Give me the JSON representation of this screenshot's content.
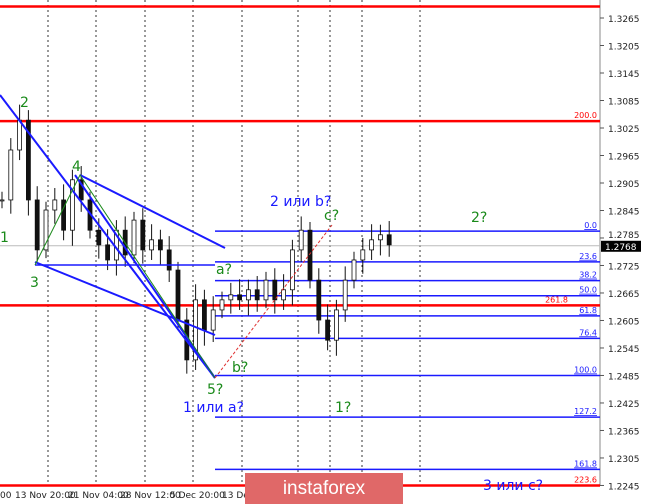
{
  "chart_data": {
    "type": "candlestick",
    "ylim": [
      1.2245,
      1.3265
    ],
    "y_ticks": [
      "1.3265",
      "1.3205",
      "1.3145",
      "1.3085",
      "1.3025",
      "1.2965",
      "1.2905",
      "1.2845",
      "1.2785",
      "1.2725",
      "1.2665",
      "1.2605",
      "1.2545",
      "1.2485",
      "1.2425",
      "1.2365",
      "1.2305",
      "1.2245"
    ],
    "x_ticks": [
      "00",
      "13 Nov 20:00",
      "21 Nov 04:00",
      "28 Nov 12:00",
      "5 Dec 20:00",
      "13 De"
    ],
    "closes": [
      1.2868,
      1.2977,
      1.3042,
      1.2868,
      1.2759,
      1.2846,
      1.2868,
      1.2802,
      1.2912,
      1.2868,
      1.2802,
      1.277,
      1.2737,
      1.2802,
      1.2748,
      1.2824,
      1.2759,
      1.2781,
      1.2759,
      1.2715,
      1.2606,
      1.2519,
      1.265,
      1.2584,
      1.2628,
      1.265,
      1.2661,
      1.265,
      1.2672,
      1.265,
      1.2693,
      1.265,
      1.2672,
      1.2759,
      1.2802,
      1.2693,
      1.2606,
      1.2562,
      1.2628,
      1.2693,
      1.2737,
      1.2759,
      1.2781,
      1.2792,
      1.277
    ],
    "current_price": "1.2768",
    "fib_levels": [
      {
        "label": "0.0",
        "price": 1.28
      },
      {
        "label": "23.6",
        "price": 1.2733
      },
      {
        "label": "38.2",
        "price": 1.2692
      },
      {
        "label": "50.0",
        "price": 1.2659
      },
      {
        "label": "61.8",
        "price": 1.2615
      },
      {
        "label": "76.4",
        "price": 1.2566
      },
      {
        "label": "100.0",
        "price": 1.2485
      },
      {
        "label": "127.2",
        "price": 1.2394
      },
      {
        "label": "161.8",
        "price": 1.228
      }
    ],
    "red_levels": [
      {
        "label": "",
        "price": 1.329
      },
      {
        "label": "200.0",
        "price": 1.304
      },
      {
        "label": "261.8",
        "price": 1.2638
      },
      {
        "label": "223.6",
        "price": 1.2245
      }
    ],
    "wave_labels": [
      {
        "text": "2",
        "color": "#1a8a1a"
      },
      {
        "text": "4",
        "color": "#1a8a1a"
      },
      {
        "text": "3",
        "color": "#1a8a1a"
      },
      {
        "text": "1",
        "color": "#1a8a1a"
      },
      {
        "text": "5?",
        "color": "#1a8a1a"
      },
      {
        "text": "1 или a?",
        "color": "#1a1aff"
      },
      {
        "text": "a?",
        "color": "#1a8a1a"
      },
      {
        "text": "b?",
        "color": "#1a8a1a"
      },
      {
        "text": "c?",
        "color": "#1a8a1a"
      },
      {
        "text": "2 или b?",
        "color": "#1a1aff"
      },
      {
        "text": "2?",
        "color": "#1a8a1a"
      },
      {
        "text": "1?",
        "color": "#1a8a1a"
      },
      {
        "text": "3 или с?",
        "color": "#1a1aff"
      }
    ]
  },
  "watermark": "instaforex",
  "colors": {
    "fib": "#1a1aff",
    "red": "#ff0000",
    "wave_green": "#1a8a1a"
  }
}
